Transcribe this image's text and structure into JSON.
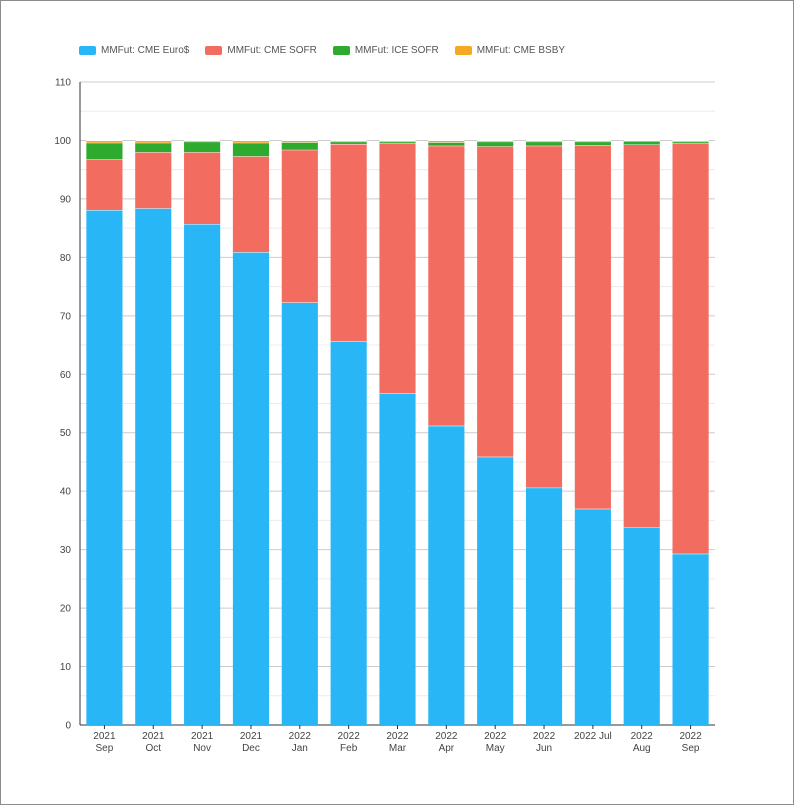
{
  "chart_data": {
    "type": "bar",
    "stacked": true,
    "categories": [
      [
        "2021",
        "Sep"
      ],
      [
        "2021",
        "Oct"
      ],
      [
        "2021",
        "Nov"
      ],
      [
        "2021",
        "Dec"
      ],
      [
        "2022",
        "Jan"
      ],
      [
        "2022",
        "Feb"
      ],
      [
        "2022",
        "Mar"
      ],
      [
        "2022",
        "Apr"
      ],
      [
        "2022",
        "May"
      ],
      [
        "2022",
        "Jun"
      ],
      [
        "2022 Jul"
      ],
      [
        "2022",
        "Aug"
      ],
      [
        "2022",
        "Sep"
      ]
    ],
    "series": [
      {
        "name": "MMFut: CME Euro$",
        "color": "#29b6f6",
        "values": [
          88.1,
          88.4,
          85.7,
          80.9,
          72.3,
          65.7,
          56.8,
          51.2,
          45.9,
          40.6,
          37.0,
          33.8,
          29.3
        ]
      },
      {
        "name": "MMFut: CME SOFR",
        "color": "#f26c60",
        "values": [
          8.7,
          9.6,
          12.3,
          16.4,
          26.1,
          33.7,
          42.7,
          47.9,
          53.1,
          58.5,
          62.2,
          65.5,
          70.2
        ]
      },
      {
        "name": "MMFut: ICE SOFR",
        "color": "#2eaa2e",
        "values": [
          2.8,
          1.6,
          1.8,
          2.3,
          1.3,
          0.4,
          0.3,
          0.6,
          0.8,
          0.7,
          0.6,
          0.6,
          0.3
        ]
      },
      {
        "name": "MMFut: CME BSBY",
        "color": "#f7a823",
        "values": [
          0.4,
          0.4,
          0.2,
          0.4,
          0.3,
          0.2,
          0.2,
          0.3,
          0.2,
          0.2,
          0.2,
          0.1,
          0.2
        ]
      }
    ],
    "ylim": [
      0,
      110
    ],
    "yticks": [
      0,
      10,
      20,
      30,
      40,
      50,
      60,
      70,
      80,
      90,
      100,
      110
    ],
    "grid": true,
    "legend_position": "top-left"
  }
}
